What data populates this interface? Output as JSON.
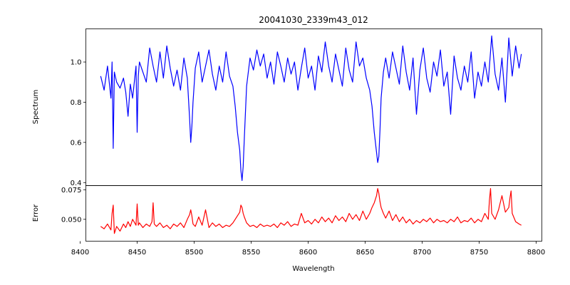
{
  "chart_data": {
    "type": "line",
    "title": "20041030_2339m43_012",
    "xlabel": "Wavelength",
    "xlim": [
      8405,
      8805
    ],
    "xticks": [
      8400,
      8450,
      8500,
      8550,
      8600,
      8650,
      8700,
      8750,
      8800
    ],
    "grid": false,
    "legend": "none",
    "panels": [
      {
        "name": "spectrum",
        "ylabel": "Spectrum",
        "ylim": [
          0.385,
          1.165
        ],
        "yticks": [
          "0.4",
          "0.6",
          "0.8",
          "1.0"
        ],
        "ytick_values": [
          0.4,
          0.6,
          0.8,
          1.0
        ],
        "color": "#0000ff",
        "x": [
          8418,
          8421,
          8424,
          8427,
          8428,
          8429,
          8430,
          8432,
          8435,
          8438,
          8440,
          8442,
          8444,
          8446,
          8449,
          8450,
          8451,
          8452,
          8455,
          8458,
          8461,
          8464,
          8467,
          8470,
          8473,
          8476,
          8479,
          8482,
          8485,
          8488,
          8491,
          8494,
          8496,
          8497,
          8498,
          8499,
          8501,
          8504,
          8507,
          8510,
          8513,
          8516,
          8519,
          8522,
          8525,
          8528,
          8531,
          8534,
          8536,
          8538,
          8540,
          8541,
          8542,
          8543,
          8544,
          8546,
          8549,
          8552,
          8555,
          8558,
          8561,
          8564,
          8567,
          8570,
          8573,
          8576,
          8579,
          8582,
          8585,
          8588,
          8591,
          8594,
          8597,
          8600,
          8603,
          8606,
          8609,
          8612,
          8615,
          8618,
          8621,
          8624,
          8627,
          8630,
          8633,
          8636,
          8639,
          8642,
          8645,
          8648,
          8651,
          8654,
          8656,
          8658,
          8660,
          8661,
          8662,
          8663,
          8664,
          8666,
          8668,
          8671,
          8674,
          8677,
          8680,
          8683,
          8686,
          8689,
          8692,
          8695,
          8698,
          8701,
          8704,
          8707,
          8710,
          8713,
          8716,
          8719,
          8722,
          8725,
          8728,
          8731,
          8734,
          8737,
          8740,
          8743,
          8746,
          8749,
          8752,
          8755,
          8758,
          8761,
          8764,
          8767,
          8770,
          8773,
          8776,
          8779,
          8782,
          8785,
          8787
        ],
        "y": [
          0.93,
          0.86,
          0.98,
          0.82,
          1.0,
          0.57,
          0.95,
          0.9,
          0.87,
          0.92,
          0.85,
          0.73,
          0.89,
          0.82,
          0.98,
          0.65,
          0.93,
          1.0,
          0.95,
          0.9,
          1.07,
          0.98,
          0.9,
          1.05,
          0.92,
          1.08,
          0.97,
          0.88,
          0.96,
          0.86,
          1.02,
          0.92,
          0.72,
          0.6,
          0.68,
          0.8,
          0.97,
          1.05,
          0.9,
          0.98,
          1.06,
          0.94,
          0.86,
          0.98,
          0.9,
          1.05,
          0.93,
          0.88,
          0.78,
          0.65,
          0.56,
          0.46,
          0.41,
          0.48,
          0.62,
          0.88,
          1.02,
          0.96,
          1.06,
          0.98,
          1.04,
          0.92,
          1.0,
          0.89,
          1.05,
          0.98,
          0.9,
          1.02,
          0.94,
          1.0,
          0.86,
          0.97,
          1.07,
          0.92,
          0.98,
          0.86,
          1.03,
          0.95,
          1.1,
          0.98,
          0.9,
          1.04,
          0.96,
          0.88,
          1.07,
          0.96,
          0.9,
          1.1,
          0.98,
          1.02,
          0.92,
          0.86,
          0.78,
          0.65,
          0.55,
          0.5,
          0.53,
          0.66,
          0.82,
          0.95,
          1.02,
          0.92,
          1.05,
          0.97,
          0.89,
          1.08,
          0.95,
          0.86,
          1.02,
          0.74,
          0.96,
          1.07,
          0.92,
          0.85,
          1.0,
          0.93,
          1.06,
          0.88,
          0.95,
          0.74,
          1.03,
          0.92,
          0.86,
          0.98,
          0.9,
          1.05,
          0.82,
          0.95,
          0.88,
          1.0,
          0.9,
          1.13,
          0.94,
          0.86,
          1.02,
          0.8,
          1.12,
          0.93,
          1.08,
          0.97,
          1.04
        ]
      },
      {
        "name": "error",
        "ylabel": "Error",
        "ylim": [
          0.0315,
          0.0785
        ],
        "yticks": [
          "0.050",
          "0.075"
        ],
        "ytick_values": [
          0.05,
          0.075
        ],
        "color": "#ff0000",
        "x": [
          8418,
          8421,
          8424,
          8427,
          8428,
          8429,
          8430,
          8432,
          8435,
          8438,
          8440,
          8442,
          8444,
          8446,
          8449,
          8450,
          8451,
          8452,
          8455,
          8458,
          8461,
          8463,
          8464,
          8465,
          8467,
          8470,
          8473,
          8476,
          8479,
          8482,
          8485,
          8488,
          8491,
          8494,
          8496,
          8497,
          8498,
          8499,
          8501,
          8504,
          8507,
          8510,
          8513,
          8516,
          8519,
          8522,
          8525,
          8528,
          8531,
          8534,
          8536,
          8538,
          8540,
          8541,
          8542,
          8543,
          8544,
          8546,
          8549,
          8552,
          8555,
          8558,
          8561,
          8564,
          8567,
          8570,
          8573,
          8576,
          8579,
          8582,
          8585,
          8588,
          8591,
          8594,
          8597,
          8600,
          8603,
          8606,
          8609,
          8612,
          8615,
          8618,
          8621,
          8624,
          8627,
          8630,
          8633,
          8636,
          8639,
          8642,
          8645,
          8648,
          8651,
          8654,
          8656,
          8658,
          8660,
          8661,
          8662,
          8663,
          8664,
          8666,
          8668,
          8671,
          8674,
          8677,
          8680,
          8683,
          8686,
          8689,
          8692,
          8695,
          8698,
          8701,
          8704,
          8707,
          8710,
          8713,
          8716,
          8719,
          8722,
          8725,
          8728,
          8731,
          8734,
          8737,
          8740,
          8743,
          8746,
          8749,
          8752,
          8755,
          8758,
          8759,
          8760,
          8761,
          8764,
          8767,
          8770,
          8773,
          8776,
          8777,
          8778,
          8779,
          8782,
          8785,
          8787
        ],
        "y": [
          0.044,
          0.042,
          0.046,
          0.041,
          0.055,
          0.062,
          0.038,
          0.044,
          0.04,
          0.046,
          0.043,
          0.048,
          0.044,
          0.05,
          0.045,
          0.063,
          0.045,
          0.047,
          0.043,
          0.046,
          0.044,
          0.048,
          0.064,
          0.046,
          0.044,
          0.047,
          0.043,
          0.045,
          0.042,
          0.046,
          0.044,
          0.047,
          0.043,
          0.05,
          0.054,
          0.058,
          0.053,
          0.046,
          0.044,
          0.052,
          0.045,
          0.058,
          0.043,
          0.047,
          0.044,
          0.046,
          0.043,
          0.045,
          0.044,
          0.047,
          0.05,
          0.053,
          0.056,
          0.062,
          0.06,
          0.055,
          0.052,
          0.047,
          0.044,
          0.045,
          0.043,
          0.046,
          0.044,
          0.045,
          0.044,
          0.046,
          0.043,
          0.047,
          0.045,
          0.048,
          0.044,
          0.046,
          0.045,
          0.055,
          0.047,
          0.049,
          0.046,
          0.05,
          0.047,
          0.052,
          0.048,
          0.051,
          0.047,
          0.053,
          0.049,
          0.052,
          0.048,
          0.055,
          0.05,
          0.054,
          0.049,
          0.057,
          0.05,
          0.055,
          0.06,
          0.064,
          0.07,
          0.076,
          0.072,
          0.065,
          0.06,
          0.055,
          0.051,
          0.057,
          0.049,
          0.054,
          0.048,
          0.052,
          0.047,
          0.05,
          0.046,
          0.049,
          0.047,
          0.05,
          0.048,
          0.051,
          0.047,
          0.05,
          0.048,
          0.049,
          0.047,
          0.05,
          0.048,
          0.052,
          0.047,
          0.049,
          0.048,
          0.051,
          0.047,
          0.05,
          0.048,
          0.055,
          0.05,
          0.066,
          0.076,
          0.055,
          0.05,
          0.058,
          0.07,
          0.056,
          0.06,
          0.068,
          0.074,
          0.055,
          0.048,
          0.046,
          0.045
        ]
      }
    ]
  }
}
